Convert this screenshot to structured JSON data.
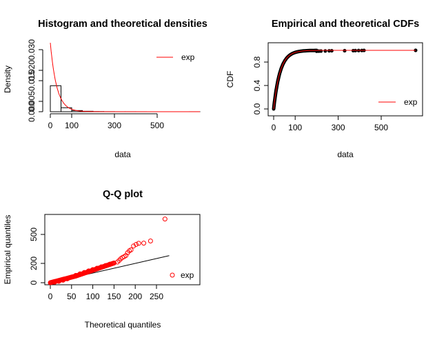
{
  "chart_data": [
    {
      "type": "histogram",
      "title": "Histogram and theoretical densities",
      "xlabel": "data",
      "ylabel": "Density",
      "xlim": [
        -5,
        690
      ],
      "ylim": [
        0,
        0.0335
      ],
      "xticks": [
        0,
        100,
        300,
        500
      ],
      "xtick_labels": [
        "0",
        "100",
        "300",
        "500"
      ],
      "yticks": [
        0,
        0.005,
        0.015,
        0.02,
        0.03
      ],
      "ytick_labels": [
        "0.000",
        "0.005",
        "0.015",
        "0.020",
        "0.030"
      ],
      "bins": [
        {
          "from": 0,
          "to": 50,
          "density": 0.01256
        },
        {
          "from": 50,
          "to": 100,
          "density": 0.00192
        },
        {
          "from": 100,
          "to": 150,
          "density": 0.00056
        },
        {
          "from": 150,
          "to": 200,
          "density": 0.00022
        },
        {
          "from": 200,
          "to": 250,
          "density": 8e-05
        },
        {
          "from": 250,
          "to": 300,
          "density": 4e-05
        },
        {
          "from": 300,
          "to": 350,
          "density": 2e-05
        },
        {
          "from": 350,
          "to": 400,
          "density": 2e-05
        },
        {
          "from": 400,
          "to": 450,
          "density": 1e-05
        },
        {
          "from": 450,
          "to": 500,
          "density": 0.0
        },
        {
          "from": 500,
          "to": 550,
          "density": 0.0
        },
        {
          "from": 550,
          "to": 600,
          "density": 0.0
        },
        {
          "from": 600,
          "to": 650,
          "density": 0.0
        },
        {
          "from": 650,
          "to": 700,
          "density": 1e-05
        }
      ],
      "fitted_density": {
        "name": "exp",
        "rate": 0.0333,
        "color": "#ff0000"
      },
      "legend": {
        "entries": [
          "exp"
        ],
        "position": "top-right"
      }
    },
    {
      "type": "line",
      "title": "Empirical and theoretical CDFs",
      "xlabel": "data",
      "ylabel": "CDF",
      "xlim": [
        -10,
        680
      ],
      "ylim": [
        -0.04,
        1.04
      ],
      "xticks": [
        0,
        100,
        300,
        500
      ],
      "xtick_labels": [
        "0",
        "100",
        "300",
        "500"
      ],
      "yticks": [
        0,
        0.4,
        0.8
      ],
      "ytick_labels": [
        "0.0",
        "0.4",
        "0.8"
      ],
      "empirical_tail_points": [
        {
          "x": 200,
          "y": 0.985
        },
        {
          "x": 210,
          "y": 0.987
        },
        {
          "x": 220,
          "y": 0.988
        },
        {
          "x": 240,
          "y": 0.99
        },
        {
          "x": 258,
          "y": 0.992
        },
        {
          "x": 270,
          "y": 0.993
        },
        {
          "x": 330,
          "y": 0.994
        },
        {
          "x": 370,
          "y": 0.995
        },
        {
          "x": 380,
          "y": 0.996
        },
        {
          "x": 395,
          "y": 0.997
        },
        {
          "x": 410,
          "y": 0.998
        },
        {
          "x": 420,
          "y": 0.999
        },
        {
          "x": 660,
          "y": 1.0
        }
      ],
      "fitted_cdf": {
        "name": "exp",
        "color": "#ff0000"
      },
      "legend": {
        "entries": [
          "exp"
        ],
        "position": "bottom-right"
      }
    },
    {
      "type": "scatter",
      "title": "Q-Q plot",
      "xlabel": "Theoretical quantiles",
      "ylabel": "Empirical quantiles",
      "xlim": [
        -5,
        280
      ],
      "ylim": [
        -20,
        700
      ],
      "xticks": [
        0,
        50,
        100,
        150,
        200,
        250
      ],
      "xtick_labels": [
        "0",
        "50",
        "100",
        "150",
        "200",
        "250"
      ],
      "yticks": [
        0,
        200,
        500
      ],
      "ytick_labels": [
        "0",
        "200",
        "500"
      ],
      "points": [
        {
          "x": 10,
          "y": 5
        },
        {
          "x": 20,
          "y": 14
        },
        {
          "x": 30,
          "y": 26
        },
        {
          "x": 40,
          "y": 40
        },
        {
          "x": 50,
          "y": 58
        },
        {
          "x": 60,
          "y": 76
        },
        {
          "x": 70,
          "y": 92
        },
        {
          "x": 80,
          "y": 106
        },
        {
          "x": 90,
          "y": 122
        },
        {
          "x": 100,
          "y": 136
        },
        {
          "x": 110,
          "y": 150
        },
        {
          "x": 120,
          "y": 164
        },
        {
          "x": 130,
          "y": 178
        },
        {
          "x": 140,
          "y": 192
        },
        {
          "x": 150,
          "y": 204
        },
        {
          "x": 158,
          "y": 214
        },
        {
          "x": 162,
          "y": 230
        },
        {
          "x": 166,
          "y": 248
        },
        {
          "x": 170,
          "y": 262
        },
        {
          "x": 174,
          "y": 270
        },
        {
          "x": 178,
          "y": 282
        },
        {
          "x": 182,
          "y": 310
        },
        {
          "x": 186,
          "y": 330
        },
        {
          "x": 190,
          "y": 340
        },
        {
          "x": 196,
          "y": 380
        },
        {
          "x": 202,
          "y": 396
        },
        {
          "x": 208,
          "y": 408
        },
        {
          "x": 220,
          "y": 410
        },
        {
          "x": 236,
          "y": 432
        },
        {
          "x": 270,
          "y": 660
        }
      ],
      "reference_line": {
        "slope": 1,
        "intercept": 0
      },
      "legend": {
        "entries": [
          "exp"
        ],
        "position": "bottom-right"
      }
    }
  ]
}
